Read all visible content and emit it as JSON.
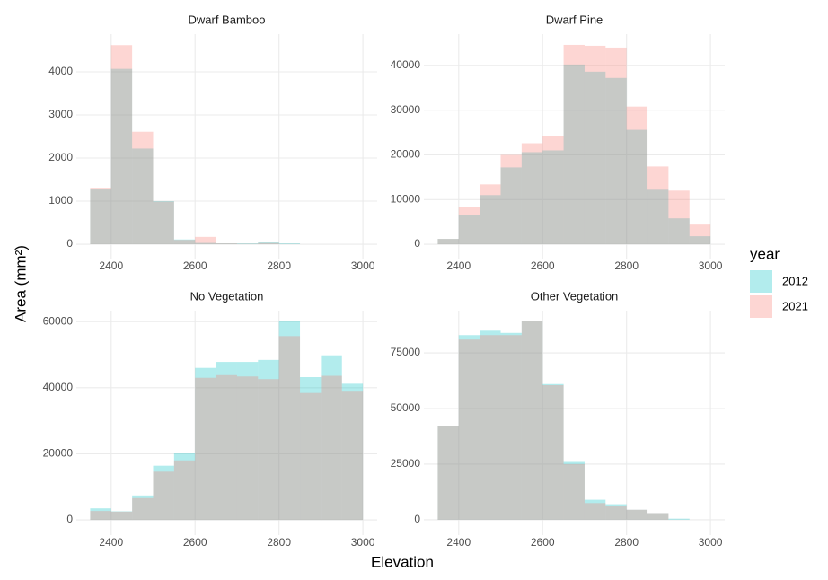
{
  "x_label": "Elevation",
  "y_label": "Area (mm²)",
  "legend_title": "year",
  "chart_data": [
    {
      "type": "histogram",
      "title": "Dwarf Bamboo",
      "bins": [
        2350,
        2400,
        2450,
        2500,
        2550,
        2600,
        2650,
        2700,
        2750,
        2800,
        2850,
        2900,
        2950,
        3000
      ],
      "series": [
        {
          "name": "2012",
          "color": "#00BFC4",
          "values": [
            1270,
            4070,
            2220,
            1000,
            110,
            30,
            20,
            20,
            60,
            20,
            0,
            0,
            0
          ]
        },
        {
          "name": "2021",
          "color": "#F8766D",
          "values": [
            1310,
            4620,
            2610,
            990,
            100,
            170,
            20,
            10,
            30,
            5,
            0,
            0,
            0
          ]
        }
      ],
      "xlim": [
        2317,
        3034
      ],
      "ylim": [
        -333,
        4875
      ],
      "xticks": [
        2400,
        2600,
        2800,
        3000
      ],
      "yticks": [
        0,
        1000,
        2000,
        3000,
        4000
      ],
      "grid": true
    },
    {
      "type": "histogram",
      "title": "Dwarf Pine",
      "bins": [
        2350,
        2400,
        2450,
        2500,
        2550,
        2600,
        2650,
        2700,
        2750,
        2800,
        2850,
        2900,
        2950,
        3000
      ],
      "series": [
        {
          "name": "2012",
          "color": "#00BFC4",
          "values": [
            1200,
            6600,
            11000,
            17200,
            20600,
            21000,
            40200,
            38600,
            37200,
            25600,
            12200,
            5800,
            1800
          ]
        },
        {
          "name": "2021",
          "color": "#F8766D",
          "values": [
            1200,
            8400,
            13400,
            20000,
            22600,
            24200,
            44600,
            44400,
            44000,
            30800,
            17400,
            12000,
            4400
          ]
        }
      ],
      "xlim": [
        2317,
        3034
      ],
      "ylim": [
        -3200,
        47000
      ],
      "xticks": [
        2400,
        2600,
        2800,
        3000
      ],
      "yticks": [
        0,
        10000,
        20000,
        30000,
        40000
      ],
      "grid": true
    },
    {
      "type": "histogram",
      "title": "No Vegetation",
      "bins": [
        2350,
        2400,
        2450,
        2500,
        2550,
        2600,
        2650,
        2700,
        2750,
        2800,
        2850,
        2900,
        2950,
        3000
      ],
      "series": [
        {
          "name": "2012",
          "color": "#00BFC4",
          "values": [
            3500,
            2600,
            7400,
            16400,
            20200,
            46000,
            47800,
            47800,
            48400,
            60200,
            43200,
            49800,
            41200
          ]
        },
        {
          "name": "2021",
          "color": "#F8766D",
          "values": [
            2700,
            2500,
            6600,
            14600,
            18000,
            43000,
            43800,
            43400,
            42600,
            55600,
            38400,
            43600,
            38800
          ]
        }
      ],
      "xlim": [
        2317,
        3034
      ],
      "ylim": [
        -4600,
        63300
      ],
      "xticks": [
        2400,
        2600,
        2800,
        3000
      ],
      "yticks": [
        0,
        20000,
        40000,
        60000
      ],
      "grid": true
    },
    {
      "type": "histogram",
      "title": "Other Vegetation",
      "bins": [
        2350,
        2400,
        2450,
        2500,
        2550,
        2600,
        2650,
        2700,
        2750,
        2800,
        2850,
        2900,
        2950,
        3000
      ],
      "series": [
        {
          "name": "2012",
          "color": "#00BFC4",
          "values": [
            42000,
            83000,
            85000,
            84000,
            89500,
            61000,
            26000,
            9000,
            7000,
            4500,
            3000,
            500,
            0
          ]
        },
        {
          "name": "2021",
          "color": "#F8766D",
          "values": [
            42000,
            81000,
            83000,
            83000,
            89500,
            60500,
            25000,
            7500,
            6000,
            4500,
            3000,
            0,
            0
          ]
        }
      ],
      "xlim": [
        2317,
        3034
      ],
      "ylim": [
        -6900,
        94000
      ],
      "xticks": [
        2400,
        2600,
        2800,
        3000
      ],
      "yticks": [
        0,
        25000,
        50000,
        75000
      ],
      "grid": true
    }
  ]
}
